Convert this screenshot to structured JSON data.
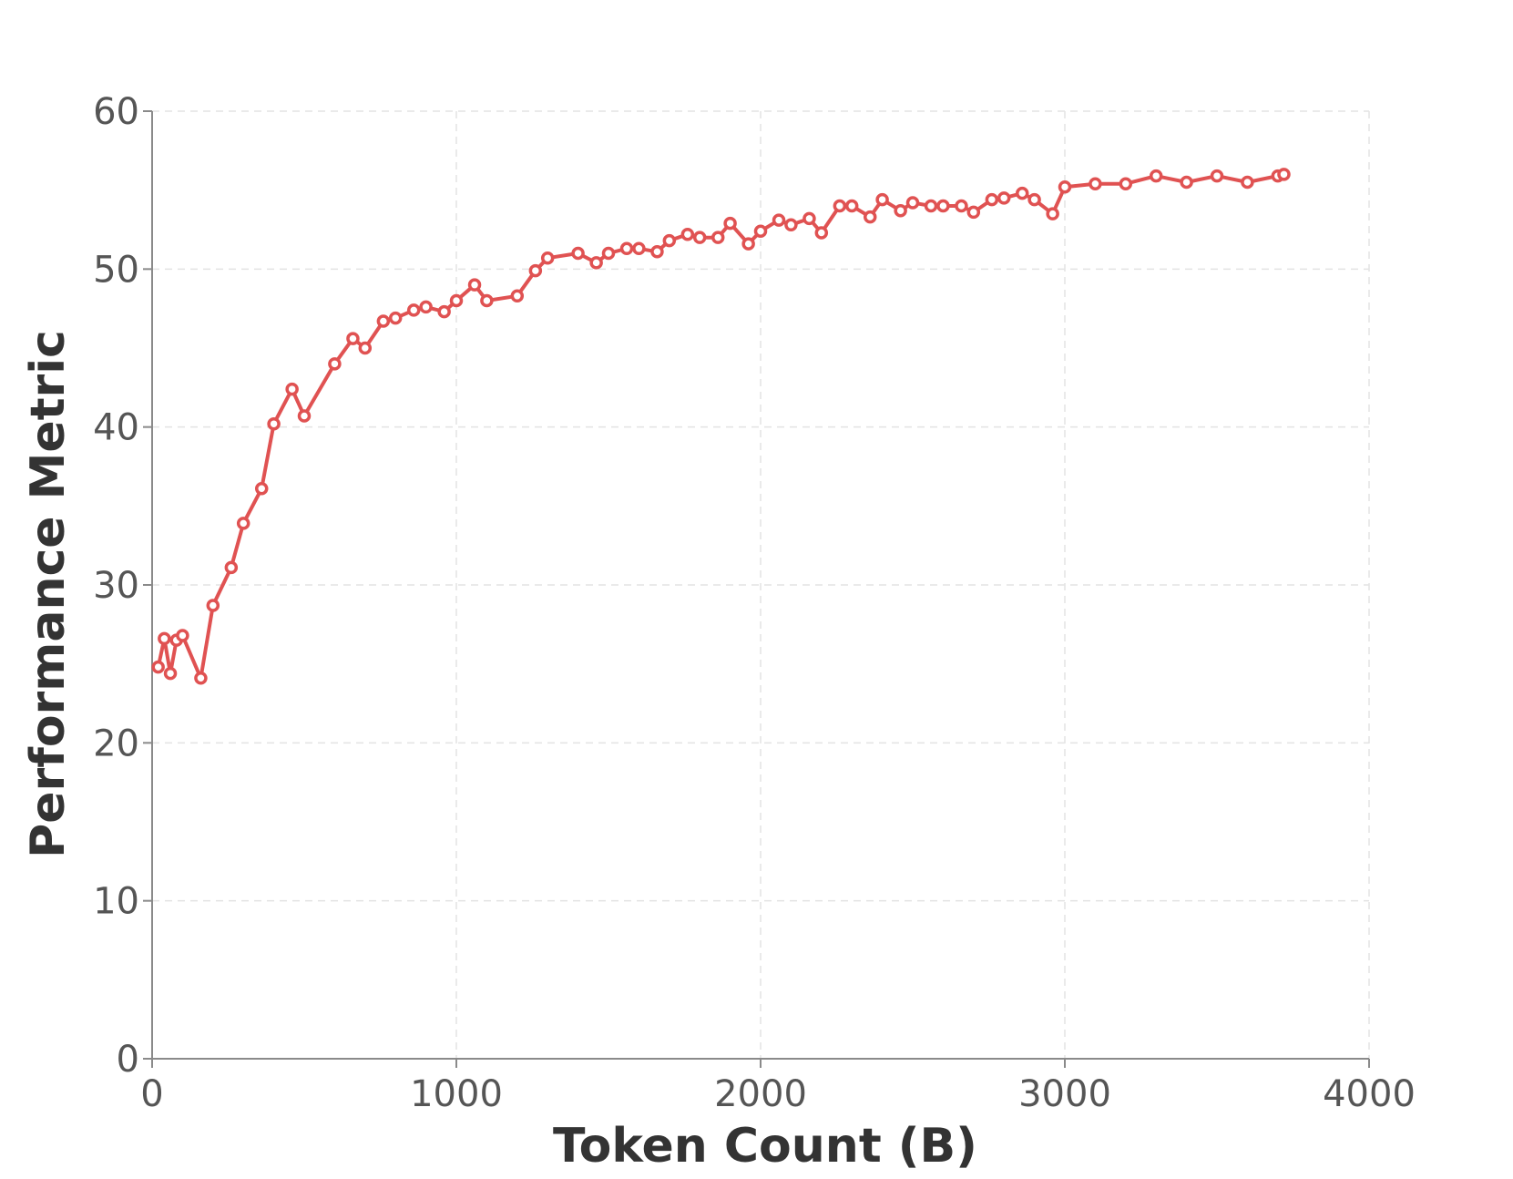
{
  "chart_data": {
    "type": "line",
    "xlabel": "Token Count (B)",
    "ylabel": "Performance Metric",
    "xlim": [
      0,
      4000
    ],
    "ylim": [
      0,
      60
    ],
    "xticks": [
      0,
      1000,
      2000,
      3000,
      4000
    ],
    "yticks": [
      0,
      10,
      20,
      30,
      40,
      50,
      60
    ],
    "grid": true,
    "series_color": "#e05252",
    "series": [
      {
        "x": [
          20,
          40,
          60,
          80,
          100,
          160,
          200,
          260,
          300,
          360,
          400,
          460,
          500,
          600,
          660,
          700,
          760,
          800,
          860,
          900,
          960,
          1000,
          1060,
          1100,
          1200,
          1260,
          1300,
          1400,
          1460,
          1500,
          1560,
          1600,
          1660,
          1700,
          1760,
          1800,
          1860,
          1900,
          1960,
          2000,
          2060,
          2100,
          2160,
          2200,
          2260,
          2300,
          2360,
          2400,
          2460,
          2500,
          2560,
          2600,
          2660,
          2700,
          2760,
          2800,
          2860,
          2900,
          2960,
          3000,
          3100,
          3200,
          3300,
          3400,
          3500,
          3600,
          3700,
          3720
        ],
        "values": [
          24.8,
          26.6,
          24.4,
          26.5,
          26.8,
          24.1,
          28.7,
          31.1,
          33.9,
          36.1,
          40.2,
          42.4,
          40.7,
          44.0,
          45.6,
          45.0,
          46.7,
          46.9,
          47.4,
          47.6,
          47.3,
          48.0,
          49.0,
          48.0,
          48.3,
          49.9,
          50.7,
          51.0,
          50.4,
          51.0,
          51.3,
          51.3,
          51.1,
          51.8,
          52.2,
          52.0,
          52.0,
          52.9,
          51.6,
          52.4,
          53.1,
          52.8,
          53.2,
          52.3,
          54.0,
          54.0,
          53.3,
          54.4,
          53.7,
          54.2,
          54.0,
          54.0,
          54.0,
          53.6,
          54.4,
          54.5,
          54.8,
          54.4,
          53.5,
          55.2,
          55.4,
          55.4,
          55.9,
          55.5,
          55.9,
          55.5,
          55.9,
          56.0
        ]
      }
    ]
  }
}
